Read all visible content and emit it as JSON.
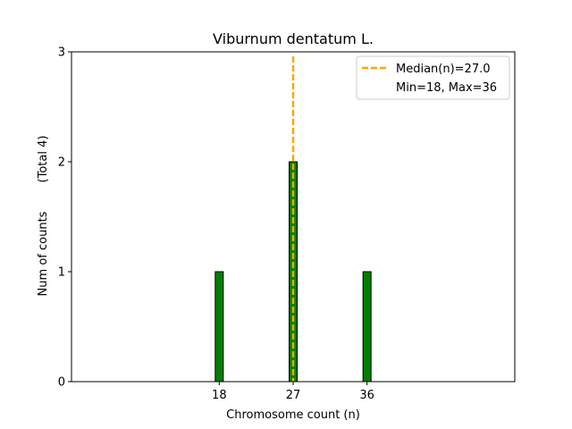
{
  "chart_data": {
    "type": "bar",
    "title": "Viburnum dentatum L.",
    "xlabel": "Chromosome count (n)",
    "ylabel": "Num of counts",
    "ylabel_total": "(Total 4)",
    "xlim": [
      0,
      54
    ],
    "ylim": [
      0,
      3
    ],
    "x_ticks": [
      18,
      27,
      36
    ],
    "y_ticks": [
      0,
      1,
      2,
      3
    ],
    "bars": [
      {
        "x": 18,
        "value": 1
      },
      {
        "x": 27,
        "value": 2
      },
      {
        "x": 36,
        "value": 1
      }
    ],
    "bar_color": "#008000",
    "median": 27.0,
    "median_color": "#FFA500",
    "legend": {
      "position": "top-right",
      "entries": [
        "Median(n)=27.0",
        "Min=18, Max=36"
      ]
    },
    "grid": false
  }
}
